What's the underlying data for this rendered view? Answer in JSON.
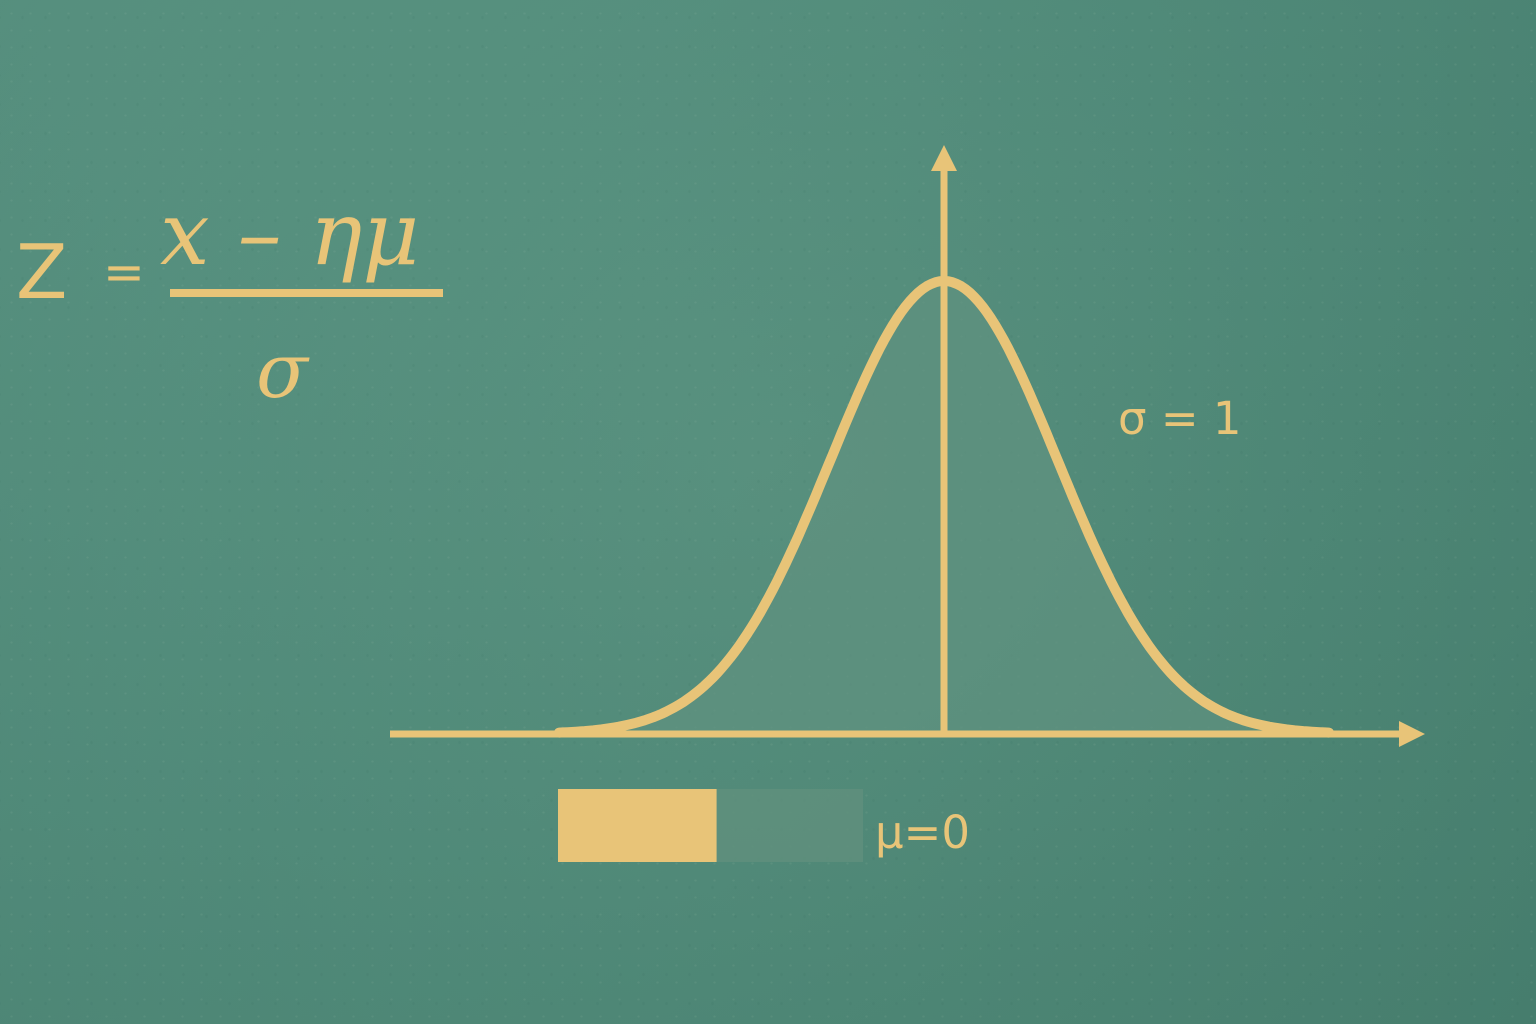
{
  "formula": {
    "left": "Z",
    "equals": "=",
    "numerator": "x – ημ",
    "denominator": "σ"
  },
  "annotations": {
    "sigma": "σ = 1",
    "mu": "μ=0"
  },
  "legend_bar": {
    "filled_fraction": 0.52
  },
  "colors": {
    "background": "#4f8978",
    "ink": "#e8c478",
    "shade": "#5f927f",
    "legend_empty": "#5f8f7c"
  },
  "chart_data": {
    "type": "line",
    "xlim": [
      -3.4,
      3.4
    ],
    "ylim": [
      0,
      1.1
    ],
    "mean": 0,
    "sigma": 1,
    "curve_sample_x": [
      -3.4,
      -3.0,
      -2.5,
      -2.0,
      -1.5,
      -1.0,
      -0.5,
      0,
      0.5,
      1.0,
      1.5,
      2.0,
      2.5,
      3.0,
      3.4
    ],
    "curve_sample_y": [
      0.003,
      0.011,
      0.044,
      0.135,
      0.325,
      0.607,
      0.883,
      1.0,
      0.883,
      0.607,
      0.325,
      0.135,
      0.044,
      0.011,
      0.003
    ]
  }
}
